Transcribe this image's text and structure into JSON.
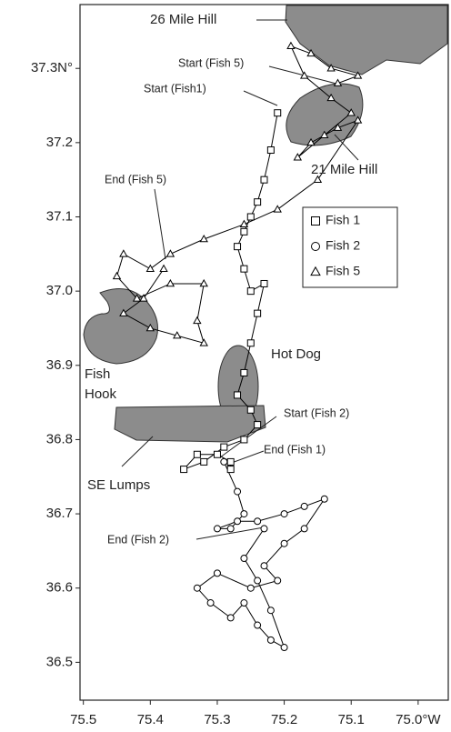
{
  "chart_data": {
    "type": "line",
    "xlim": [
      75.505,
      74.955
    ],
    "ylim": [
      36.449,
      37.386
    ],
    "xticks": [
      75.5,
      75.4,
      75.3,
      75.2,
      75.1,
      {
        "value": 75.0,
        "label": "75.0°W"
      }
    ],
    "yticks": [
      36.5,
      36.6,
      36.7,
      36.8,
      36.9,
      {
        "value": 37.0,
        "label": "37.0"
      },
      37.1,
      37.2,
      {
        "value": 37.3,
        "label": "37.3N°"
      }
    ],
    "legend": "upper right",
    "series": [
      {
        "name": "Fish 1",
        "marker": "square",
        "color": "#000000",
        "x": [
          75.21,
          75.22,
          75.23,
          75.24,
          75.25,
          75.26,
          75.27,
          75.26,
          75.25,
          75.23,
          75.24,
          75.25,
          75.26,
          75.27,
          75.25,
          75.24,
          75.26,
          75.29,
          75.32,
          75.35,
          75.33,
          75.3,
          75.28,
          75.28
        ],
        "values": [
          37.24,
          37.19,
          37.15,
          37.12,
          37.1,
          37.08,
          37.06,
          37.03,
          37.0,
          37.01,
          36.97,
          36.93,
          36.89,
          36.86,
          36.84,
          36.82,
          36.8,
          36.79,
          36.77,
          36.76,
          36.78,
          36.78,
          36.77,
          36.76
        ]
      },
      {
        "name": "Fish 2",
        "marker": "circle",
        "color": "#000000",
        "x": [
          75.29,
          75.27,
          75.26,
          75.28,
          75.3,
          75.27,
          75.24,
          75.2,
          75.17,
          75.14,
          75.17,
          75.2,
          75.23,
          75.21,
          75.25,
          75.3,
          75.33,
          75.31,
          75.28,
          75.26,
          75.24,
          75.22,
          75.2,
          75.22,
          75.24,
          75.26,
          75.23
        ],
        "values": [
          36.77,
          36.73,
          36.7,
          36.68,
          36.68,
          36.69,
          36.69,
          36.7,
          36.71,
          36.72,
          36.68,
          36.66,
          36.63,
          36.61,
          36.6,
          36.62,
          36.6,
          36.58,
          36.56,
          36.58,
          36.55,
          36.53,
          36.52,
          36.57,
          36.61,
          36.64,
          36.68
        ]
      },
      {
        "name": "Fish 5",
        "marker": "triangle",
        "color": "#000000",
        "x": [
          75.12,
          75.09,
          75.13,
          75.16,
          75.19,
          75.17,
          75.13,
          75.1,
          75.14,
          75.18,
          75.16,
          75.12,
          75.09,
          75.15,
          75.21,
          75.26,
          75.32,
          75.37,
          75.4,
          75.44,
          75.45,
          75.42,
          75.37,
          75.32,
          75.33,
          75.32,
          75.36,
          75.4,
          75.44,
          75.41,
          75.38
        ],
        "values": [
          37.28,
          37.29,
          37.3,
          37.32,
          37.33,
          37.29,
          37.26,
          37.24,
          37.21,
          37.18,
          37.2,
          37.22,
          37.23,
          37.15,
          37.11,
          37.09,
          37.07,
          37.05,
          37.03,
          37.05,
          37.02,
          36.99,
          37.01,
          37.01,
          36.96,
          36.93,
          36.94,
          36.95,
          36.97,
          36.99,
          37.03
        ]
      }
    ],
    "regions": [
      "26 Mile Hill",
      "21 Mile Hill",
      "Hot Dog",
      [
        "Fish",
        "Hook"
      ],
      "SE Lumps"
    ],
    "annotations": [
      "Start (Fish 5)",
      "Start (Fish1)",
      "End (Fish 5)",
      "Start (Fish 2)",
      "End (Fish 1)",
      "End (Fish 2)"
    ]
  }
}
